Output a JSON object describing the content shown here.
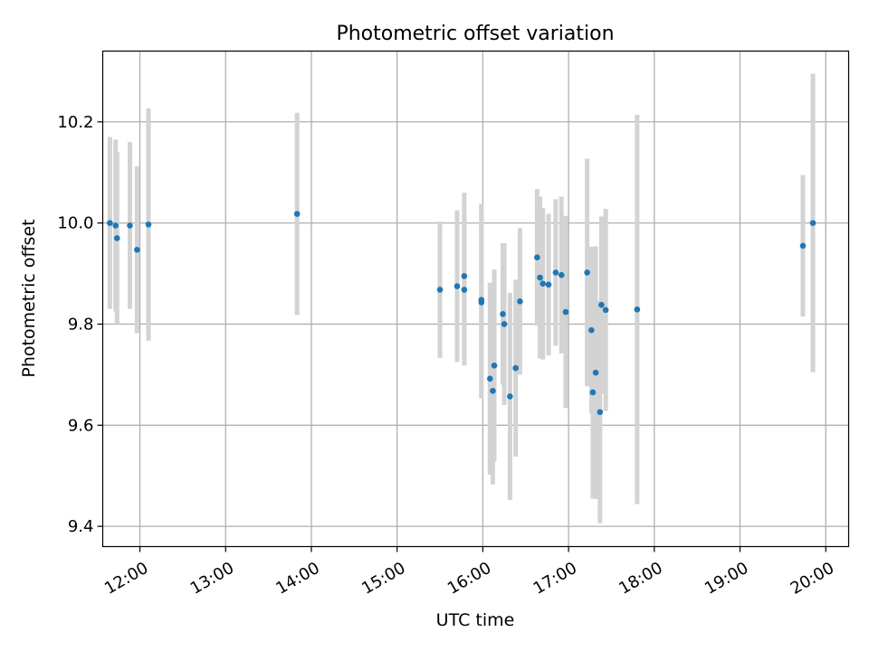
{
  "chart_data": {
    "type": "scatter",
    "title": "Photometric offset variation",
    "xlabel": "UTC time",
    "ylabel": "Photometric offset",
    "x_axis_type": "time",
    "xlim": [
      "11:34",
      "20:16"
    ],
    "ylim": [
      9.36,
      10.34
    ],
    "x_ticks": [
      "12:00",
      "13:00",
      "14:00",
      "15:00",
      "16:00",
      "17:00",
      "18:00",
      "19:00",
      "20:00"
    ],
    "y_ticks": [
      9.4,
      9.6,
      9.8,
      10.0,
      10.2
    ],
    "y_tick_labels": [
      "9.4",
      "9.6",
      "9.8",
      "10.0",
      "10.2"
    ],
    "grid": true,
    "colors": {
      "point": "#1f77b4",
      "errorbar": "#d3d3d3",
      "grid": "#b0b0b0"
    },
    "points": [
      {
        "time": "11:39",
        "y": 10.0,
        "yerr": 0.17
      },
      {
        "time": "11:43",
        "y": 9.995,
        "yerr": 0.17
      },
      {
        "time": "11:44",
        "y": 9.97,
        "yerr": 0.17
      },
      {
        "time": "11:53",
        "y": 9.995,
        "yerr": 0.165
      },
      {
        "time": "11:58",
        "y": 9.947,
        "yerr": 0.165
      },
      {
        "time": "12:06",
        "y": 9.997,
        "yerr": 0.23
      },
      {
        "time": "13:50",
        "y": 10.018,
        "yerr": 0.2
      },
      {
        "time": "15:30",
        "y": 9.868,
        "yerr": 0.135
      },
      {
        "time": "15:42",
        "y": 9.875,
        "yerr": 0.15
      },
      {
        "time": "15:47",
        "y": 9.868,
        "yerr": 0.15
      },
      {
        "time": "15:47",
        "y": 9.895,
        "yerr": 0.165
      },
      {
        "time": "15:59",
        "y": 9.843,
        "yerr": 0.19
      },
      {
        "time": "15:59",
        "y": 9.848,
        "yerr": 0.19
      },
      {
        "time": "16:05",
        "y": 9.692,
        "yerr": 0.19
      },
      {
        "time": "16:07",
        "y": 9.668,
        "yerr": 0.185
      },
      {
        "time": "16:08",
        "y": 9.718,
        "yerr": 0.19
      },
      {
        "time": "16:14",
        "y": 9.82,
        "yerr": 0.14
      },
      {
        "time": "16:15",
        "y": 9.8,
        "yerr": 0.16
      },
      {
        "time": "16:19",
        "y": 9.657,
        "yerr": 0.205
      },
      {
        "time": "16:23",
        "y": 9.713,
        "yerr": 0.175
      },
      {
        "time": "16:26",
        "y": 9.845,
        "yerr": 0.145
      },
      {
        "time": "16:38",
        "y": 9.932,
        "yerr": 0.135
      },
      {
        "time": "16:40",
        "y": 9.892,
        "yerr": 0.16
      },
      {
        "time": "16:42",
        "y": 9.88,
        "yerr": 0.15
      },
      {
        "time": "16:46",
        "y": 9.878,
        "yerr": 0.14
      },
      {
        "time": "16:51",
        "y": 9.902,
        "yerr": 0.145
      },
      {
        "time": "16:55",
        "y": 9.897,
        "yerr": 0.155
      },
      {
        "time": "16:58",
        "y": 9.824,
        "yerr": 0.19
      },
      {
        "time": "17:13",
        "y": 9.902,
        "yerr": 0.225
      },
      {
        "time": "17:16",
        "y": 9.788,
        "yerr": 0.165
      },
      {
        "time": "17:17",
        "y": 9.665,
        "yerr": 0.21
      },
      {
        "time": "17:19",
        "y": 9.704,
        "yerr": 0.25
      },
      {
        "time": "17:22",
        "y": 9.626,
        "yerr": 0.22
      },
      {
        "time": "17:23",
        "y": 9.838,
        "yerr": 0.175
      },
      {
        "time": "17:26",
        "y": 9.828,
        "yerr": 0.2
      },
      {
        "time": "17:48",
        "y": 9.829,
        "yerr": 0.385
      },
      {
        "time": "19:44",
        "y": 9.955,
        "yerr": 0.14
      },
      {
        "time": "19:51",
        "y": 10.0,
        "yerr": 0.295
      }
    ]
  }
}
